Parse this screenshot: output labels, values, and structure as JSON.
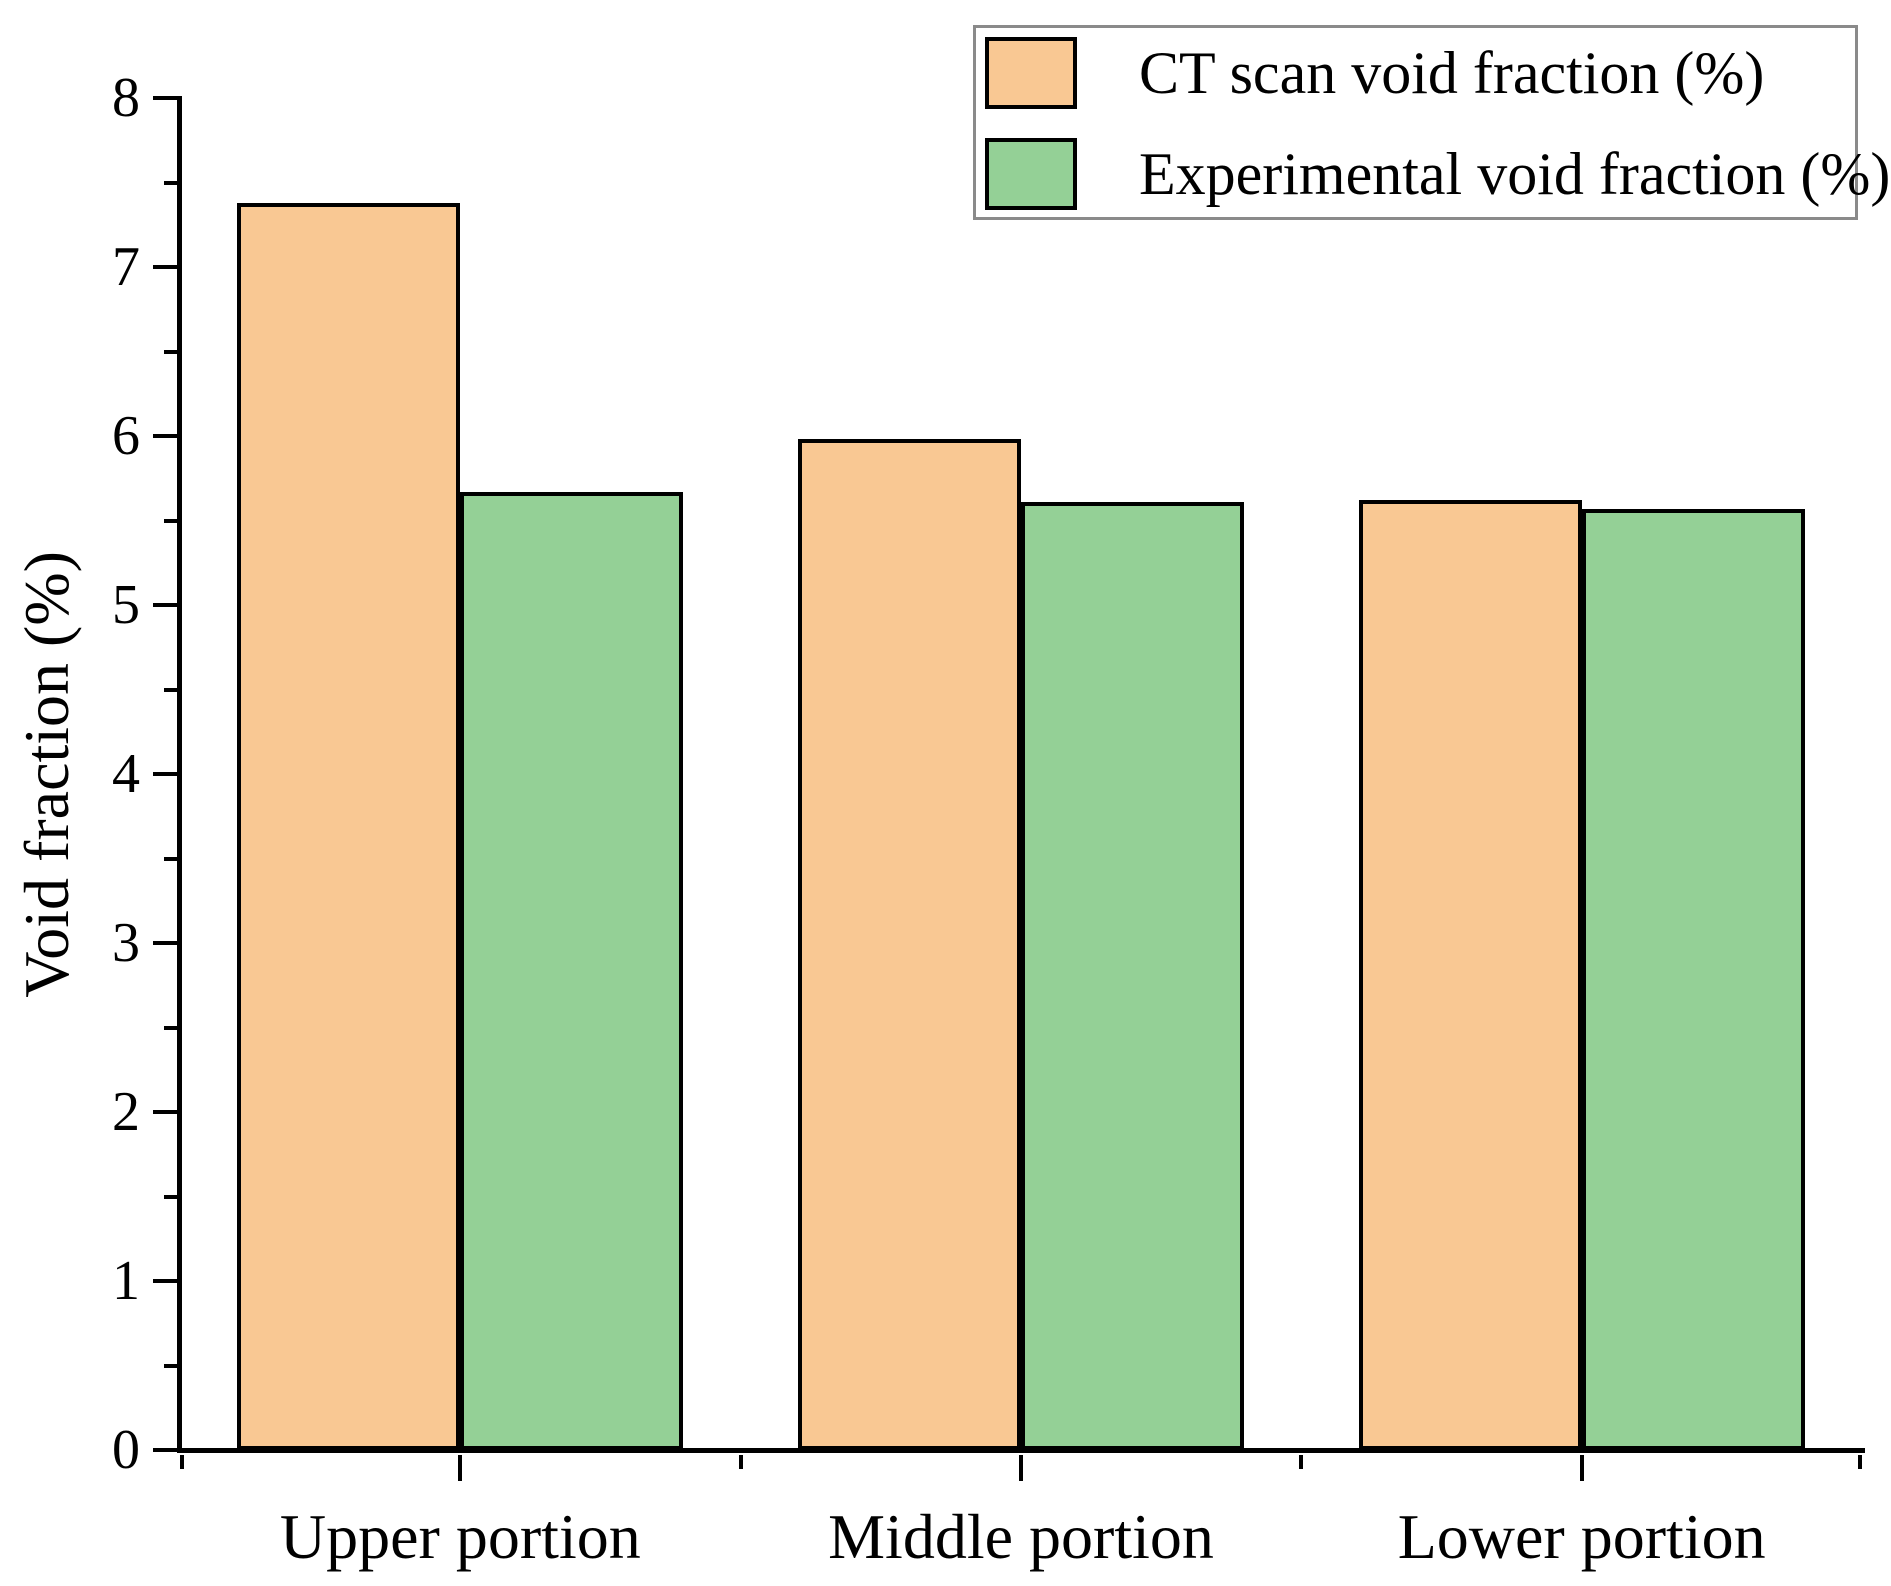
{
  "chart_data": {
    "type": "bar",
    "title": "",
    "xlabel": "",
    "ylabel": "Void fraction (%)",
    "categories": [
      "Upper portion",
      "Middle portion",
      "Lower portion"
    ],
    "series": [
      {
        "name": "CT scan void fraction (%)",
        "color": "#f9c893",
        "values": [
          7.38,
          5.98,
          5.62
        ]
      },
      {
        "name": "Experimental void fraction (%)",
        "color": "#94d096",
        "values": [
          5.67,
          5.61,
          5.57
        ]
      }
    ],
    "ylim": [
      0,
      8
    ],
    "y_major_ticks": [
      0,
      1,
      2,
      3,
      4,
      5,
      6,
      7,
      8
    ],
    "y_minor_step": 0.5,
    "grid": false,
    "legend_position": "top-right",
    "bar_edge_color": "#000000",
    "axis_color": "#000000"
  }
}
